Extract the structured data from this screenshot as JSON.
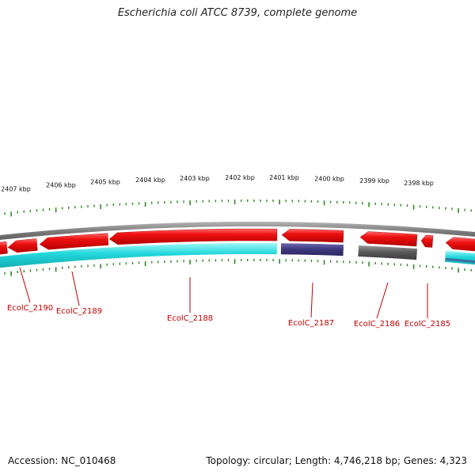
{
  "title": "Escherichia coli ATCC 8739, complete genome",
  "footer": {
    "accession": "Accession: NC_010468",
    "summary": "Topology: circular; Length: 4,746,218 bp; Genes: 4,323"
  },
  "scale": {
    "unit": "kbp",
    "labels": [
      "2407 kbp",
      "2406 kbp",
      "2405 kbp",
      "2404 kbp",
      "2403 kbp",
      "2402 kbp",
      "2401 kbp",
      "2400 kbp",
      "2399 kbp",
      "2398 kbp"
    ],
    "tick_color": "#2e8b22"
  },
  "genes": [
    "EcolC_2190",
    "EcolC_2189",
    "EcolC_2188",
    "EcolC_2187",
    "EcolC_2186",
    "EcolC_2185"
  ],
  "colors": {
    "backbone": "#8c8c8c",
    "gene_feature": "#ee1111",
    "cds_feature": "#22d8dc",
    "rna_feature": "#3f3a80",
    "other_feature": "#5a5a5a",
    "label": "#c00000",
    "gc_ticks": "#2e8b22"
  }
}
